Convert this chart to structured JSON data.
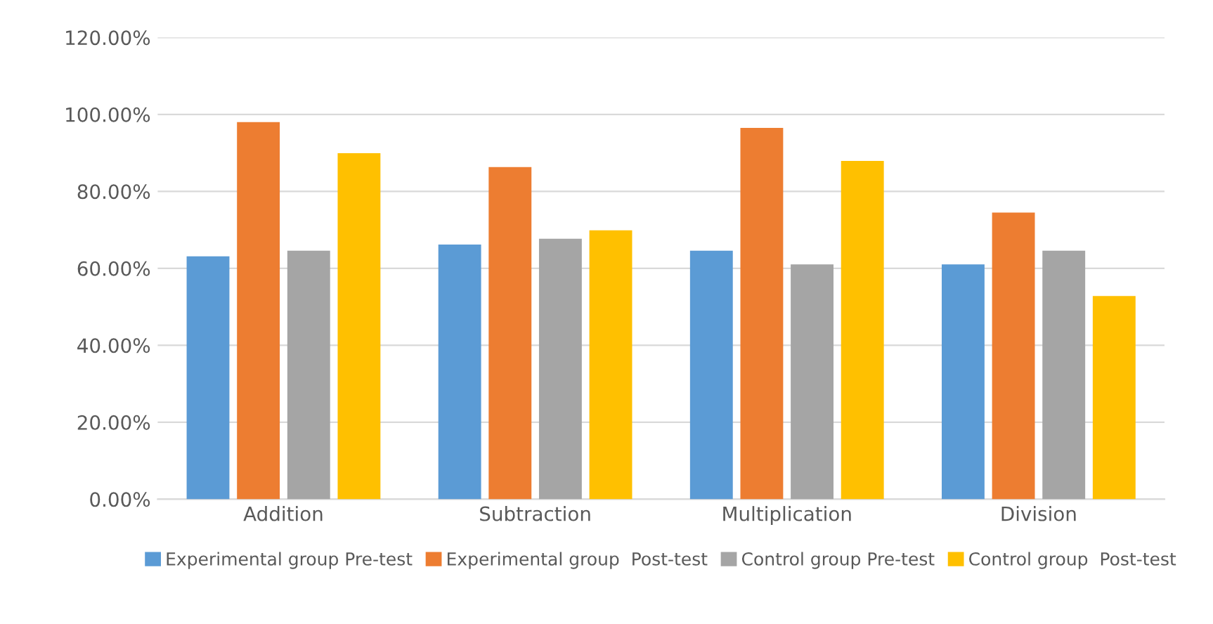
{
  "chart_data": {
    "type": "bar",
    "categories": [
      "Addition",
      "Subtraction",
      "Multiplication",
      "Division"
    ],
    "series": [
      {
        "name": "Experimental group Pre-test",
        "color": "#5b9bd5",
        "values": [
          63.1,
          66.2,
          64.6,
          61.0
        ]
      },
      {
        "name": "Experimental group  Post-test",
        "color": "#ed7d31",
        "values": [
          98.0,
          86.3,
          96.5,
          74.5
        ]
      },
      {
        "name": "Control group Pre-test",
        "color": "#a5a5a5",
        "values": [
          64.6,
          67.7,
          61.0,
          64.6
        ]
      },
      {
        "name": "Control group  Post-test",
        "color": "#ffc000",
        "values": [
          89.9,
          69.9,
          87.9,
          52.8
        ]
      }
    ],
    "ylim": [
      0,
      120
    ],
    "yticks": [
      {
        "value": 0,
        "label": "0.00%"
      },
      {
        "value": 20,
        "label": "20.00%"
      },
      {
        "value": 40,
        "label": "40.00%"
      },
      {
        "value": 60,
        "label": "60.00%"
      },
      {
        "value": 80,
        "label": "80.00%"
      },
      {
        "value": 100,
        "label": "100.00%"
      },
      {
        "value": 120,
        "label": "120.00%"
      }
    ],
    "grid": "y",
    "legend": "bottom"
  }
}
